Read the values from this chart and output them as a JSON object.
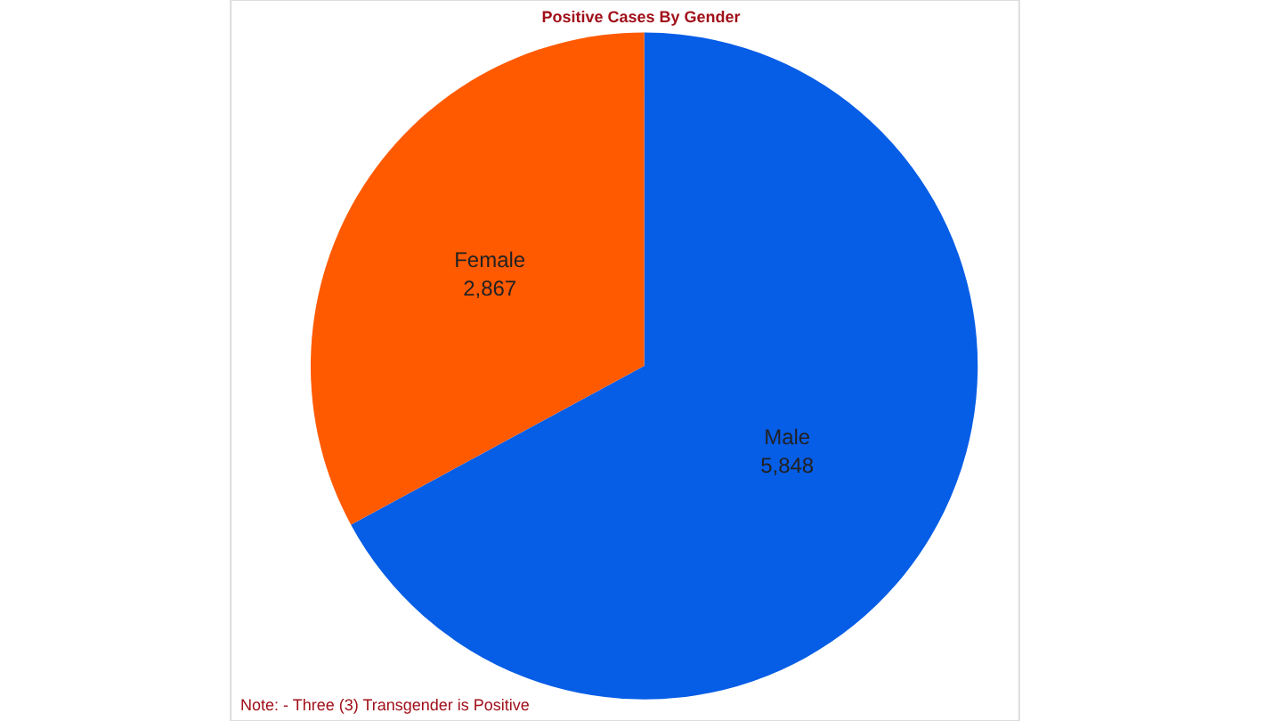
{
  "chart_data": {
    "type": "pie",
    "title": "Positive Cases By Gender",
    "categories": [
      "Male",
      "Female"
    ],
    "values": [
      5848,
      2867
    ],
    "value_labels": [
      "5,848",
      "2,867"
    ],
    "colors": [
      "#065de6",
      "#ff5a00"
    ],
    "annotations": [
      "Note: - Three (3) Transgender is Positive"
    ]
  }
}
